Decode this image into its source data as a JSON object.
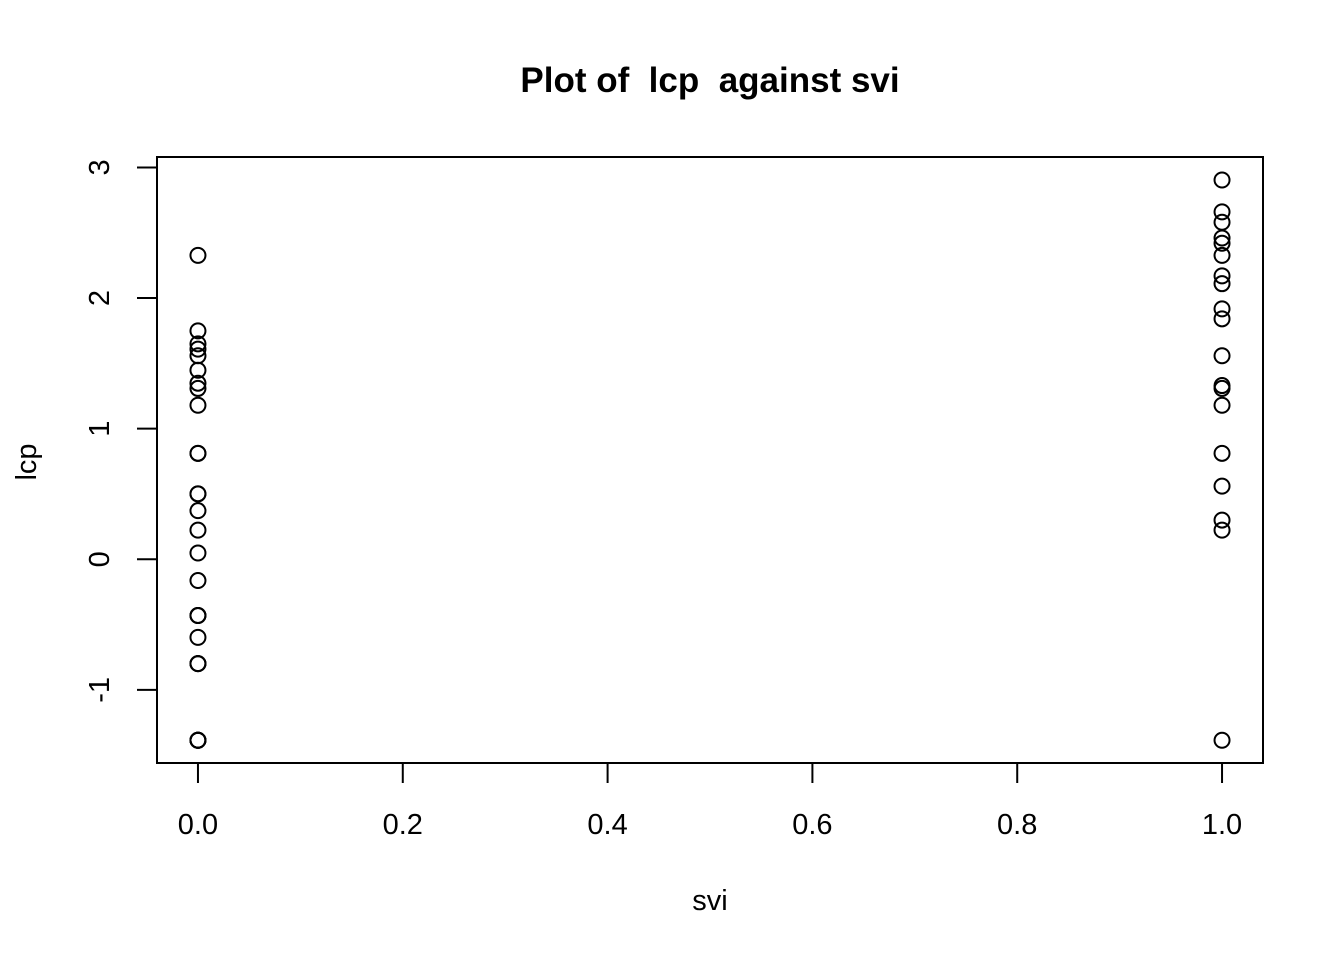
{
  "chart_data": {
    "type": "scatter",
    "title": "Plot of  lcp  against svi",
    "xlabel": "svi",
    "ylabel": "lcp",
    "xlim": [
      -0.04,
      1.04
    ],
    "ylim": [
      -1.56,
      3.08
    ],
    "x_ticks": [
      {
        "value": 0.0,
        "label": "0.0"
      },
      {
        "value": 0.2,
        "label": "0.2"
      },
      {
        "value": 0.4,
        "label": "0.4"
      },
      {
        "value": 0.6,
        "label": "0.6"
      },
      {
        "value": 0.8,
        "label": "0.8"
      },
      {
        "value": 1.0,
        "label": "1.0"
      }
    ],
    "y_ticks": [
      {
        "value": -1,
        "label": "-1"
      },
      {
        "value": 0,
        "label": "0"
      },
      {
        "value": 1,
        "label": "1"
      },
      {
        "value": 2,
        "label": "2"
      },
      {
        "value": 3,
        "label": "3"
      }
    ],
    "grid": false,
    "series": [
      {
        "points": [
          [
            0,
            -1.386
          ],
          [
            0,
            -1.386
          ],
          [
            0,
            -1.386
          ],
          [
            0,
            -1.386
          ],
          [
            0,
            -1.386
          ],
          [
            0,
            -0.799
          ],
          [
            0,
            -0.799
          ],
          [
            0,
            -0.799
          ],
          [
            0,
            -0.598
          ],
          [
            0,
            -0.431
          ],
          [
            0,
            -0.431
          ],
          [
            0,
            -0.431
          ],
          [
            0,
            -0.163
          ],
          [
            0,
            0.048
          ],
          [
            0,
            0.223
          ],
          [
            0,
            0.372
          ],
          [
            0,
            0.501
          ],
          [
            0,
            0.501
          ],
          [
            0,
            0.811
          ],
          [
            0,
            0.811
          ],
          [
            0,
            1.179
          ],
          [
            0,
            1.308
          ],
          [
            0,
            1.348
          ],
          [
            0,
            1.447
          ],
          [
            0,
            1.558
          ],
          [
            0,
            1.609
          ],
          [
            0,
            1.649
          ],
          [
            0,
            1.749
          ],
          [
            0,
            2.327
          ],
          [
            1,
            -1.386
          ],
          [
            1,
            0.223
          ],
          [
            1,
            0.3
          ],
          [
            1,
            0.56
          ],
          [
            1,
            0.811
          ],
          [
            1,
            1.179
          ],
          [
            1,
            1.308
          ],
          [
            1,
            1.33
          ],
          [
            1,
            1.558
          ],
          [
            1,
            1.841
          ],
          [
            1,
            1.917
          ],
          [
            1,
            2.11
          ],
          [
            1,
            2.17
          ],
          [
            1,
            2.327
          ],
          [
            1,
            2.42
          ],
          [
            1,
            2.46
          ],
          [
            1,
            2.58
          ],
          [
            1,
            2.66
          ],
          [
            1,
            2.904
          ]
        ]
      }
    ]
  }
}
